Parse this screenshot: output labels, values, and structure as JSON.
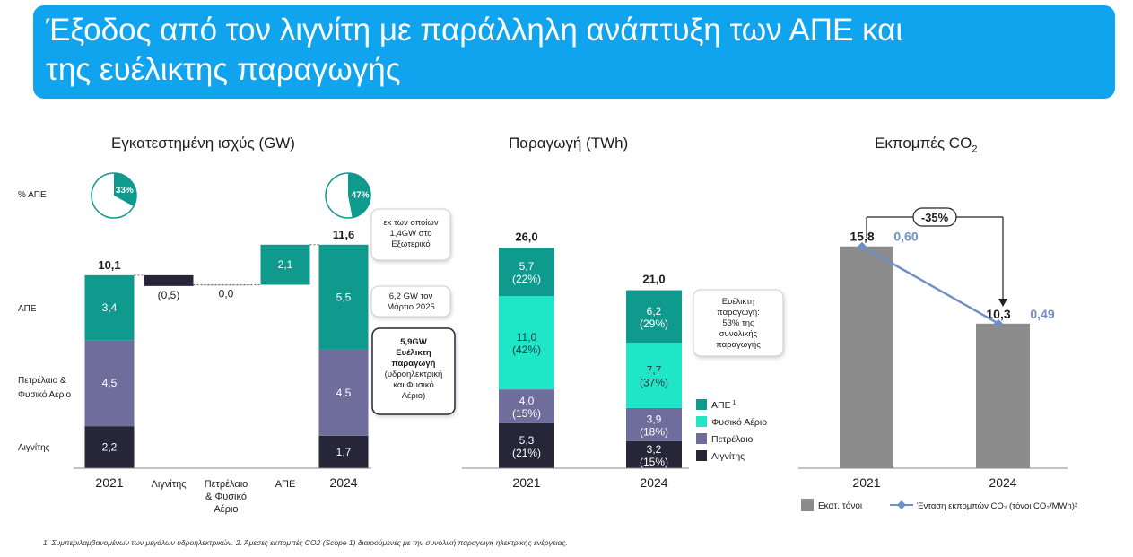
{
  "banner": {
    "title_line1": "Έξοδος από τον λιγνίτη με παράλληλη ανάπτυξη των ΑΠΕ και",
    "title_line2": "της ευέλικτης παραγωγής"
  },
  "chart_data": [
    {
      "type": "bar",
      "title": "Εγκατεστημένη ισχύς (GW)",
      "categories": [
        "2021",
        "Λιγνίτης",
        "Πετρέλαιο & Φυσικό Αέριο",
        "ΑΠΕ",
        "2024"
      ],
      "category_lines": [
        [
          "2021"
        ],
        [
          "Λιγνίτης"
        ],
        [
          "Πετρέλαιο",
          "& Φυσικό",
          "Αέριο"
        ],
        [
          "ΑΠΕ"
        ],
        [
          "2024"
        ]
      ],
      "row_labels": [
        [
          "% ΑΠΕ"
        ],
        [
          "ΑΠΕ"
        ],
        [
          "Πετρέλαιο &",
          "Φυσικό Αέριο"
        ],
        [
          "Λιγνίτης"
        ]
      ],
      "stacks": {
        "2021": {
          "total": "10,1",
          "Λιγνίτης": 2.2,
          "Πετρέλαιο & Φυσικό Αέριο": 4.5,
          "ΑΠΕ": 3.4,
          "labels": [
            "2,2",
            "4,5",
            "3,4"
          ],
          "pct_res": 33,
          "pct_label": "33%"
        },
        "2024": {
          "total": "11,6",
          "Λιγνίτης": 1.7,
          "Πετρέλαιο & Φυσικό Αέριο": 4.5,
          "ΑΠΕ": 5.5,
          "labels": [
            "1,7",
            "4,5",
            "5,5"
          ],
          "pct_res": 47,
          "pct_label": "47%"
        }
      },
      "bridge": [
        {
          "category": "Λιγνίτης",
          "change": -0.5,
          "label": "(0,5)"
        },
        {
          "category": "Πετρέλαιο & Φυσικό Αέριο",
          "change": 0.0,
          "label": "0,0"
        },
        {
          "category": "ΑΠΕ",
          "change": 2.1,
          "label": "2,1"
        }
      ],
      "colors": {
        "lignite": "#262638",
        "oilgas": "#6e6d9c",
        "res": "#0f9a8e",
        "decrease": "#262638",
        "increase": "#0f9a8e"
      },
      "annotations": {
        "callout_abroad": [
          "εκ των οποίων",
          "1,4GW στο",
          "Εξωτερικό"
        ],
        "callout_march": [
          "6,2 GW τον",
          "Μάρτιο 2025"
        ],
        "callout_flex": [
          "5,9GW",
          "Ευέλικτη",
          "παραγωγή",
          "(υδροηλεκτρική",
          "και Φυσικό",
          "Αέριο)"
        ]
      }
    },
    {
      "type": "bar",
      "title": "Παραγωγή (TWh)",
      "categories": [
        "2021",
        "2024"
      ],
      "totals": [
        "26,0",
        "21,0"
      ],
      "series": [
        {
          "name": "Λιγνίτης",
          "values": [
            5.3,
            3.2
          ],
          "labels": [
            [
              "5,3",
              "(21%)"
            ],
            [
              "3,2",
              "(15%)"
            ]
          ]
        },
        {
          "name": "Πετρέλαιο",
          "values": [
            4.0,
            3.9
          ],
          "labels": [
            [
              "4,0",
              "(15%)"
            ],
            [
              "3,9",
              "(18%)"
            ]
          ]
        },
        {
          "name": "Φυσικό Αέριο",
          "values": [
            11.0,
            7.7
          ],
          "labels": [
            [
              "11,0",
              "(42%)"
            ],
            [
              "7,7",
              "(37%)"
            ]
          ]
        },
        {
          "name": "ΑΠΕ",
          "values": [
            5.7,
            6.2
          ],
          "labels": [
            [
              "5,7",
              "(22%)"
            ],
            [
              "6,2",
              "(29%)"
            ]
          ]
        }
      ],
      "legend": [
        {
          "label": "ΑΠΕ",
          "sup": "1",
          "color": "#0f9a8e"
        },
        {
          "label": "Φυσικό Αέριο",
          "color": "#1ee6c7"
        },
        {
          "label": "Πετρέλαιο",
          "color": "#6e6d9c"
        },
        {
          "label": "Λιγνίτης",
          "color": "#262638"
        }
      ],
      "series_colors": [
        "#262638",
        "#6e6d9c",
        "#1ee6c7",
        "#0f9a8e"
      ],
      "annotation": [
        "Ευέλικτη",
        "παραγωγή:",
        "53% της",
        "συνολικής",
        "παραγωγής"
      ]
    },
    {
      "type": "bar",
      "title": "Εκπομπές CO",
      "title_sub": "2",
      "categories": [
        "2021",
        "2024"
      ],
      "series": [
        {
          "name": "Εκατ. τόνοι",
          "values": [
            15.8,
            10.3
          ],
          "labels": [
            "15,8",
            "10,3"
          ],
          "color": "#8c8c8c"
        },
        {
          "name": "Ένταση εκπομπών CO₂ (τόνοι CO₂/MWh)²",
          "type": "line",
          "values": [
            0.6,
            0.49
          ],
          "labels": [
            "0,60",
            "0,49"
          ],
          "color": "#6f8fc7"
        }
      ],
      "change_label": "-35%",
      "legend": [
        "Εκατ. τόνοι",
        "Ένταση εκπομπών CO₂ (τόνοι CO₂/MWh)²"
      ]
    }
  ],
  "footnote": "1. Συμπεριλαμβανομένων των μεγάλων υδροηλεκτρικών. 2. Άμεσες εκπομπές CO2 (Scope 1) διαιρούμενες με την συνολική παραγωγή ηλεκτρικής ενέργειας."
}
